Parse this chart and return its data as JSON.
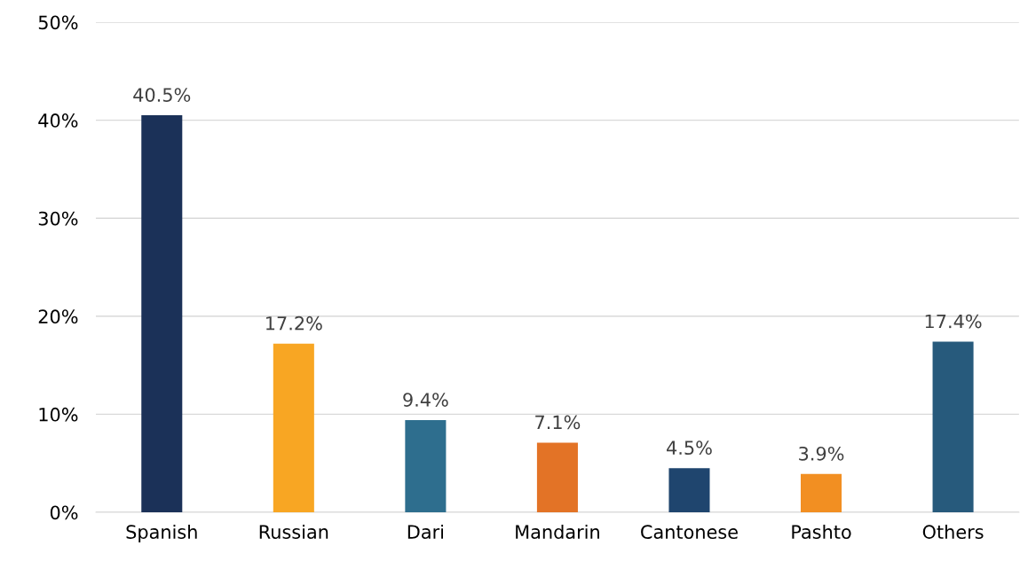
{
  "chart_data": {
    "type": "bar",
    "categories": [
      "Spanish",
      "Russian",
      "Dari",
      "Mandarin",
      "Cantonese",
      "Pashto",
      "Others"
    ],
    "values": [
      40.5,
      17.2,
      9.4,
      7.1,
      4.5,
      3.9,
      17.4
    ],
    "colors": [
      "#1b3158",
      "#f8a623",
      "#2e6e8e",
      "#e37326",
      "#1f456e",
      "#f28f22",
      "#275a7c"
    ],
    "value_labels": [
      "40.5%",
      "17.2%",
      "9.4%",
      "7.1%",
      "4.5%",
      "3.9%",
      "17.4%"
    ],
    "ylim": [
      0,
      50
    ],
    "yticks": [
      {
        "value": 0,
        "label": "0%"
      },
      {
        "value": 10,
        "label": "10%"
      },
      {
        "value": 20,
        "label": "20%"
      },
      {
        "value": 30,
        "label": "30%"
      },
      {
        "value": 40,
        "label": "40%"
      },
      {
        "value": 50,
        "label": "50%"
      }
    ],
    "grid": "y",
    "legend": false
  }
}
